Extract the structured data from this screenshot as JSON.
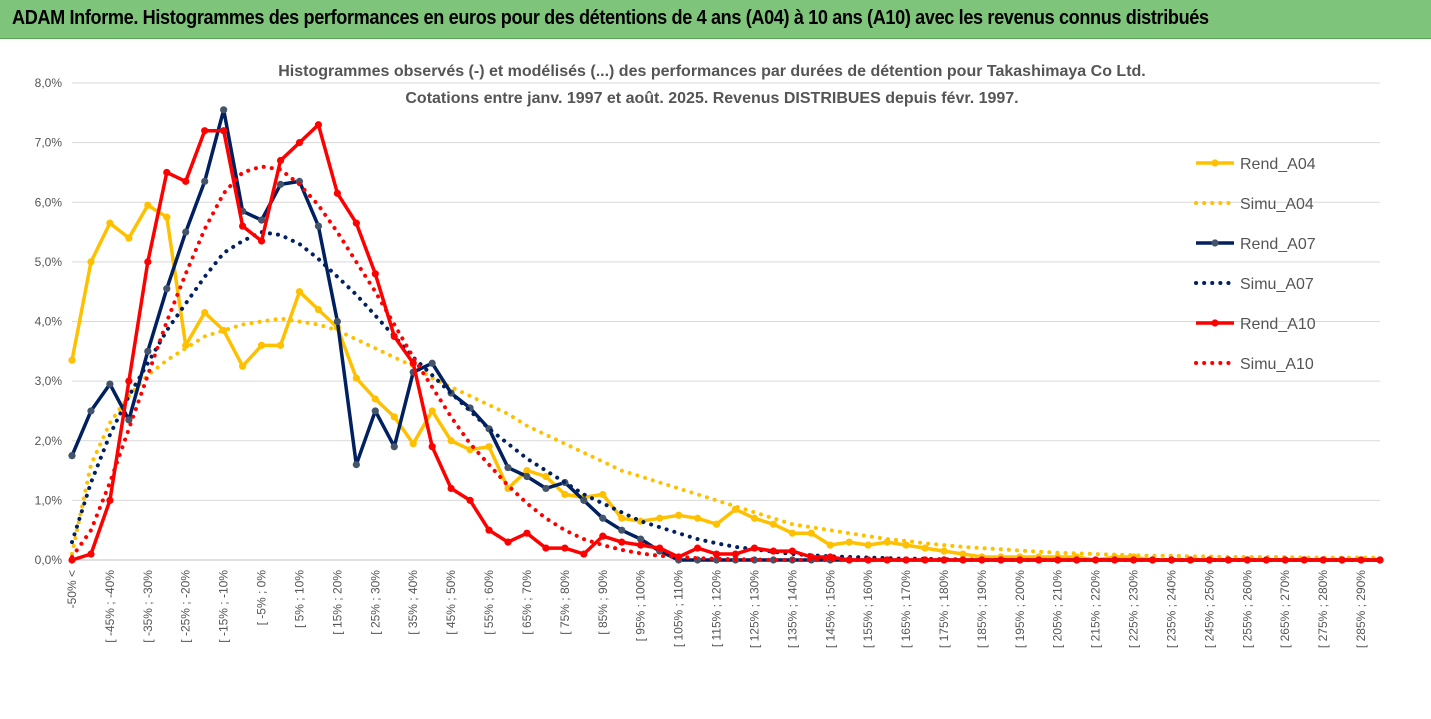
{
  "banner": {
    "title": "ADAM Informe. Histogrammes des performances en euros pour des détentions de 4 ans (A04) à 10 ans (A10) avec les revenus connus distribués"
  },
  "colors": {
    "banner_bg": "#7ec57b",
    "A04": "#ffc000",
    "A07": "#002060",
    "A10": "#ff0000"
  },
  "chart_data": {
    "type": "line",
    "title_lines": [
      "Histogrammes observés (-) et modélisés (...) des performances par durées de détention pour Takashimaya Co Ltd.",
      "Cotations entre janv. 1997 et août. 2025. Revenus DISTRIBUES depuis févr. 1997."
    ],
    "ylim": [
      0,
      8
    ],
    "y_ticks": [
      "0,0%",
      "1,0%",
      "2,0%",
      "3,0%",
      "4,0%",
      "5,0%",
      "6,0%",
      "7,0%",
      "8,0%"
    ],
    "grid": "horizontal",
    "legend_position": "top-right",
    "x_tick_labels": [
      "-50% <",
      "[ -45% ; -40%",
      "[ -35% ; -30%",
      "[ -25% ; -20%",
      "[ -15% ; -10%",
      "[ -5% ; 0%",
      "[ 5% ; 10%",
      "[ 15% ; 20%",
      "[ 25% ; 30%",
      "[ 35% ; 40%",
      "[ 45% ; 50%",
      "[ 55% ; 60%",
      "[ 65% ; 70%",
      "[ 75% ; 80%",
      "[ 85% ; 90%",
      "[ 95% ; 100%",
      "[ 105% ; 110%",
      "[ 115% ; 120%",
      "[ 125% ; 130%",
      "[ 135% ; 140%",
      "[ 145% ; 150%",
      "[ 155% ; 160%",
      "[ 165% ; 170%",
      "[ 175% ; 180%",
      "[ 185% ; 190%",
      "[ 195% ; 200%",
      "[ 205% ; 210%",
      "[ 215% ; 220%",
      "[ 225% ; 230%",
      "[ 235% ; 240%",
      "[ 245% ; 250%",
      "[ 255% ; 260%",
      "[ 265% ; 270%",
      "[ 275% ; 280%",
      "[ 285% ; 290%"
    ],
    "series": [
      {
        "name": "Rend_A04",
        "color": "#ffc000",
        "style": "solid",
        "values": [
          3.35,
          5.0,
          5.65,
          5.4,
          5.95,
          5.75,
          3.6,
          4.15,
          3.85,
          3.25,
          3.6,
          3.6,
          4.5,
          4.2,
          3.9,
          3.05,
          2.7,
          2.4,
          1.95,
          2.5,
          2.0,
          1.85,
          1.9,
          1.2,
          1.5,
          1.4,
          1.1,
          1.05,
          1.1,
          0.7,
          0.65,
          0.7,
          0.75,
          0.7,
          0.6,
          0.85,
          0.7,
          0.6,
          0.45,
          0.45,
          0.25,
          0.3,
          0.25,
          0.3,
          0.25,
          0.2,
          0.15,
          0.1,
          0.05,
          0.05,
          0.05,
          0.05,
          0.05,
          0.05,
          0.0,
          0.05,
          0.05,
          0.0,
          0.0,
          0.0,
          0.0,
          0.0,
          0.0,
          0.0,
          0.0,
          0.0,
          0.0,
          0.0,
          0.0,
          0.0
        ]
      },
      {
        "name": "Simu_A04",
        "color": "#ffc000",
        "style": "dotted",
        "values": [
          0.1,
          1.6,
          2.3,
          2.75,
          3.1,
          3.35,
          3.55,
          3.75,
          3.85,
          3.95,
          4.0,
          4.05,
          4.0,
          3.95,
          3.85,
          3.7,
          3.55,
          3.4,
          3.25,
          3.05,
          2.9,
          2.75,
          2.6,
          2.45,
          2.25,
          2.1,
          1.95,
          1.8,
          1.65,
          1.5,
          1.4,
          1.3,
          1.2,
          1.1,
          1.0,
          0.9,
          0.8,
          0.7,
          0.6,
          0.55,
          0.5,
          0.45,
          0.4,
          0.35,
          0.32,
          0.28,
          0.25,
          0.22,
          0.2,
          0.18,
          0.16,
          0.14,
          0.12,
          0.11,
          0.1,
          0.09,
          0.08,
          0.07,
          0.07,
          0.06,
          0.06,
          0.05,
          0.05,
          0.05,
          0.05,
          0.04,
          0.04,
          0.04,
          0.04,
          0.04
        ]
      },
      {
        "name": "Rend_A07",
        "color": "#002060",
        "style": "solid",
        "values": [
          1.75,
          2.5,
          2.95,
          2.35,
          3.5,
          4.55,
          5.5,
          6.35,
          7.55,
          5.85,
          5.7,
          6.3,
          6.35,
          5.6,
          4.0,
          1.6,
          2.5,
          1.9,
          3.15,
          3.3,
          2.8,
          2.55,
          2.2,
          1.55,
          1.4,
          1.2,
          1.3,
          1.0,
          0.7,
          0.5,
          0.35,
          0.15,
          0.0,
          0.0,
          0.0,
          0.0,
          0.0,
          0.0,
          0.0,
          0.0,
          0.0,
          0.0,
          0.0,
          0.0,
          0.0,
          0.0,
          0.0,
          0.0,
          0.0,
          0.0,
          0.0,
          0.0,
          0.0,
          0.0,
          0.0,
          0.0,
          0.0,
          0.0,
          0.0,
          0.0,
          0.0,
          0.0,
          0.0,
          0.0,
          0.0,
          0.0,
          0.0,
          0.0,
          0.0,
          0.0
        ]
      },
      {
        "name": "Simu_A07",
        "color": "#002060",
        "style": "dotted",
        "values": [
          0.3,
          1.3,
          2.1,
          2.75,
          3.3,
          3.85,
          4.3,
          4.75,
          5.15,
          5.35,
          5.5,
          5.45,
          5.3,
          5.05,
          4.75,
          4.45,
          4.1,
          3.75,
          3.4,
          3.1,
          2.8,
          2.5,
          2.2,
          1.95,
          1.7,
          1.5,
          1.3,
          1.1,
          0.95,
          0.8,
          0.65,
          0.55,
          0.45,
          0.35,
          0.28,
          0.22,
          0.18,
          0.14,
          0.1,
          0.08,
          0.06,
          0.05,
          0.04,
          0.03,
          0.02,
          0.02,
          0.01,
          0.01,
          0.0,
          0.0,
          0.0,
          0.0,
          0.0,
          0.0,
          0.0,
          0.0,
          0.0,
          0.0,
          0.0,
          0.0,
          0.0,
          0.0,
          0.0,
          0.0,
          0.0,
          0.0,
          0.0,
          0.0,
          0.0,
          0.0
        ]
      },
      {
        "name": "Rend_A10",
        "color": "#ff0000",
        "style": "solid",
        "values": [
          0.0,
          0.1,
          1.0,
          3.0,
          5.0,
          6.5,
          6.35,
          7.2,
          7.2,
          5.6,
          5.35,
          6.7,
          7.0,
          7.3,
          6.15,
          5.65,
          4.8,
          3.75,
          3.3,
          1.9,
          1.2,
          1.0,
          0.5,
          0.3,
          0.45,
          0.2,
          0.2,
          0.1,
          0.4,
          0.3,
          0.25,
          0.2,
          0.05,
          0.2,
          0.1,
          0.1,
          0.2,
          0.15,
          0.15,
          0.05,
          0.05,
          0.0,
          0.0,
          0.0,
          0.0,
          0.0,
          0.0,
          0.0,
          0.0,
          0.0,
          0.0,
          0.0,
          0.0,
          0.0,
          0.0,
          0.0,
          0.0,
          0.0,
          0.0,
          0.0,
          0.0,
          0.0,
          0.0,
          0.0,
          0.0,
          0.0,
          0.0,
          0.0,
          0.0,
          0.0
        ]
      },
      {
        "name": "Simu_A10",
        "color": "#ff0000",
        "style": "dotted",
        "values": [
          0.05,
          0.5,
          1.3,
          2.2,
          3.1,
          4.0,
          4.8,
          5.55,
          6.15,
          6.5,
          6.6,
          6.55,
          6.3,
          5.95,
          5.5,
          5.0,
          4.5,
          3.95,
          3.4,
          2.9,
          2.4,
          1.95,
          1.6,
          1.25,
          0.95,
          0.7,
          0.5,
          0.35,
          0.25,
          0.17,
          0.11,
          0.07,
          0.05,
          0.03,
          0.02,
          0.01,
          0.01,
          0.0,
          0.0,
          0.0,
          0.0,
          0.0,
          0.0,
          0.0,
          0.0,
          0.0,
          0.0,
          0.0,
          0.0,
          0.0,
          0.0,
          0.0,
          0.0,
          0.0,
          0.0,
          0.0,
          0.0,
          0.0,
          0.0,
          0.0,
          0.0,
          0.0,
          0.0,
          0.0,
          0.0,
          0.0,
          0.0,
          0.0,
          0.0,
          0.0
        ]
      }
    ]
  }
}
